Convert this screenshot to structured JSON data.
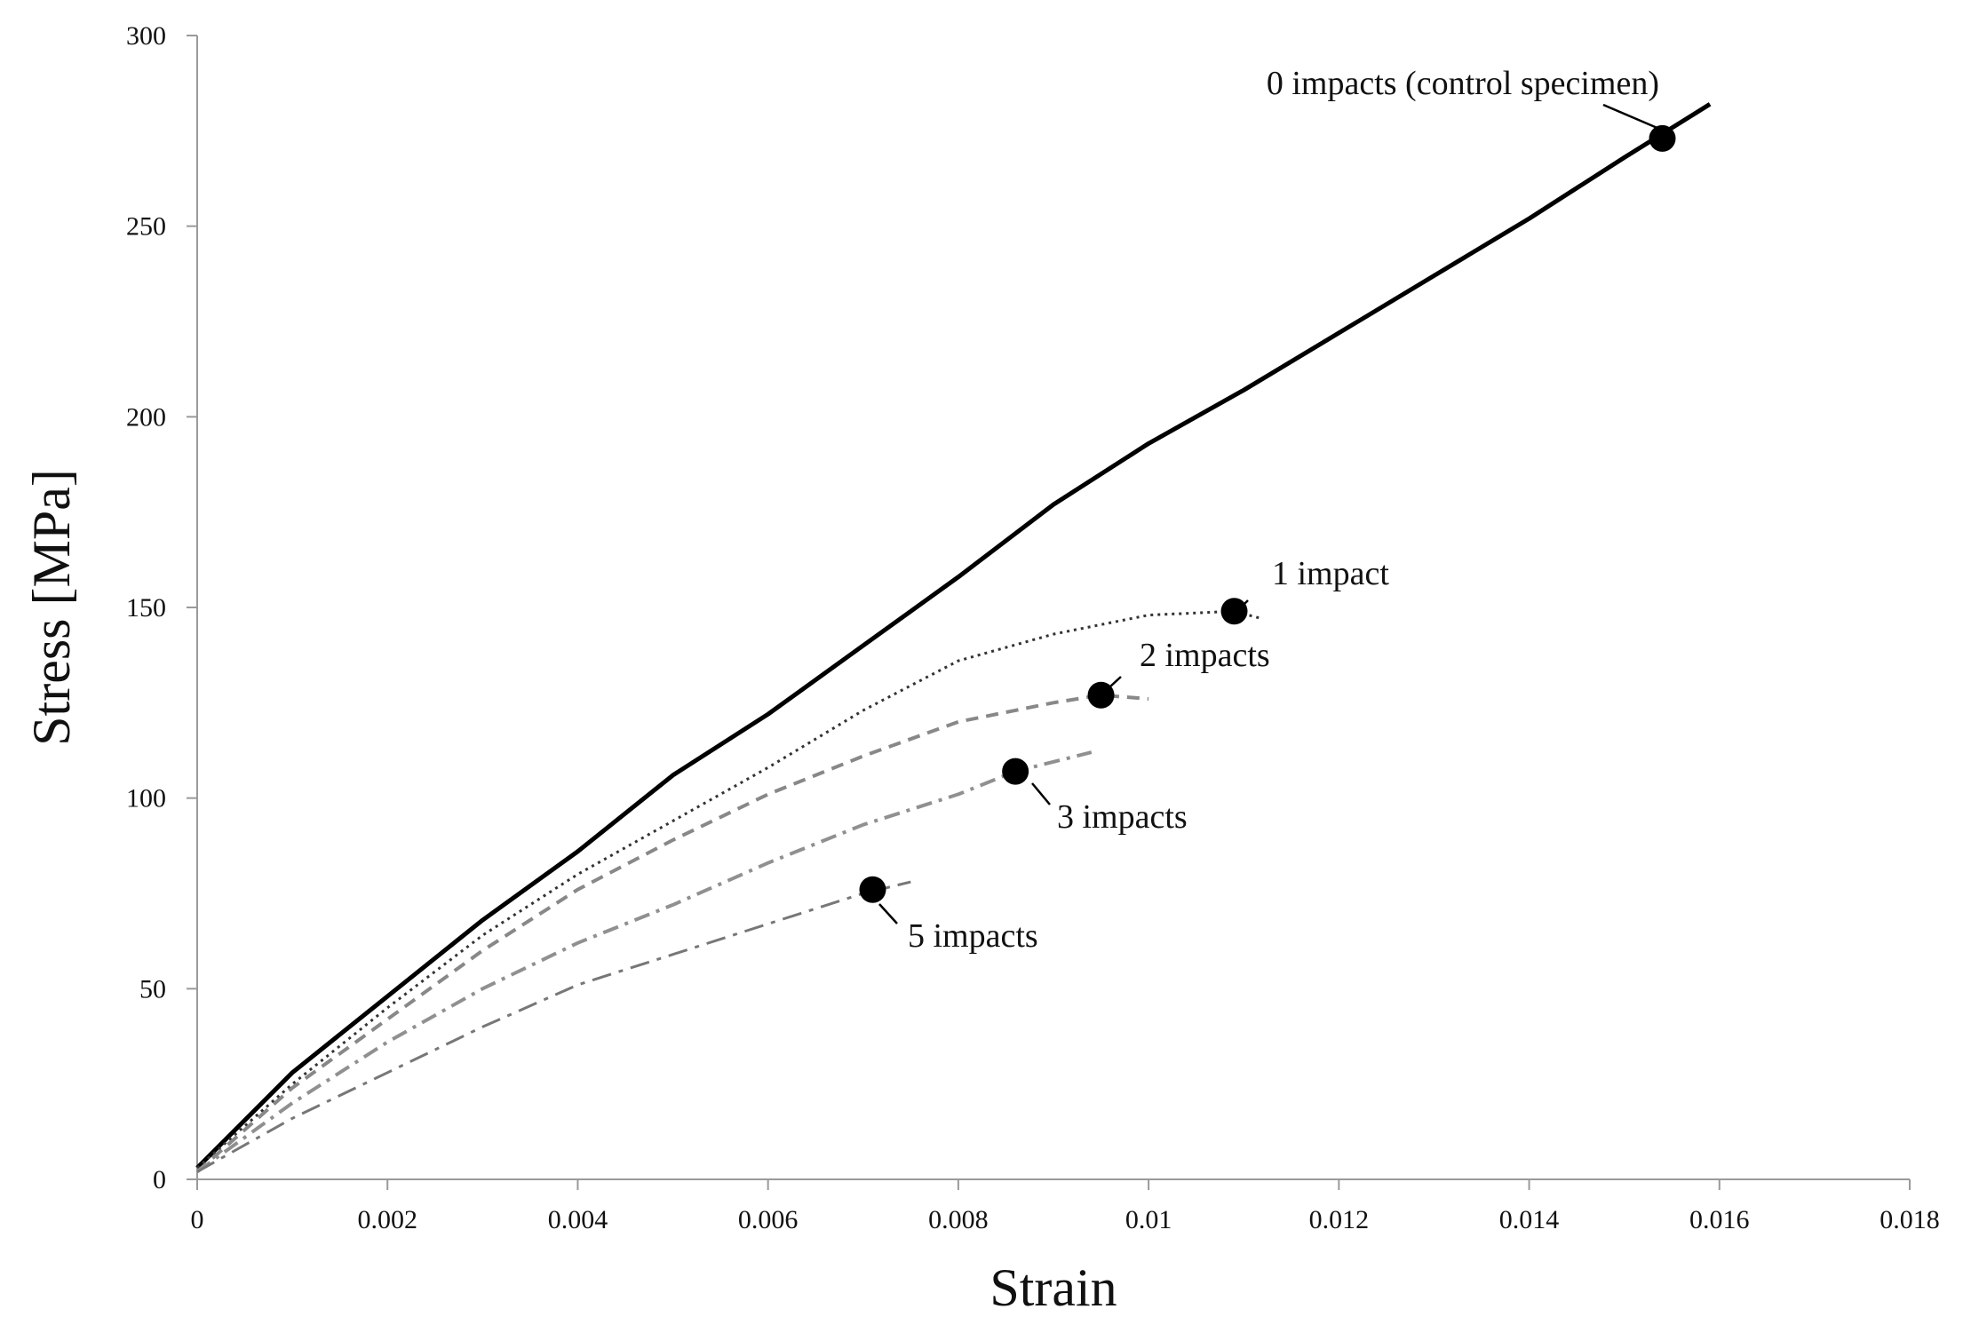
{
  "chart_data": {
    "type": "line",
    "xlabel": "Strain",
    "ylabel": "Stress [MPa]",
    "xlim": [
      0,
      0.018
    ],
    "ylim": [
      0,
      300
    ],
    "x_ticks": [
      "0",
      "0.002",
      "0.004",
      "0.006",
      "0.008",
      "0.01",
      "0.012",
      "0.014",
      "0.016",
      "0.018"
    ],
    "y_ticks": [
      "0",
      "50",
      "100",
      "150",
      "200",
      "250",
      "300"
    ],
    "grid": false,
    "legend": "none",
    "series": [
      {
        "name": "0 impacts (control specimen)",
        "color": "#000000",
        "style": "solid",
        "points": [
          [
            0,
            3
          ],
          [
            0.001,
            28
          ],
          [
            0.002,
            48
          ],
          [
            0.003,
            68
          ],
          [
            0.004,
            86
          ],
          [
            0.005,
            106
          ],
          [
            0.006,
            122
          ],
          [
            0.007,
            140
          ],
          [
            0.008,
            158
          ],
          [
            0.009,
            177
          ],
          [
            0.01,
            193
          ],
          [
            0.011,
            207
          ],
          [
            0.012,
            222
          ],
          [
            0.013,
            237
          ],
          [
            0.014,
            252
          ],
          [
            0.015,
            268
          ],
          [
            0.0159,
            282
          ]
        ],
        "failure": [
          0.0154,
          273
        ]
      },
      {
        "name": "1 impact",
        "color": "#333333",
        "style": "dotted",
        "points": [
          [
            0,
            3
          ],
          [
            0.001,
            25
          ],
          [
            0.002,
            45
          ],
          [
            0.003,
            64
          ],
          [
            0.004,
            80
          ],
          [
            0.005,
            94
          ],
          [
            0.006,
            108
          ],
          [
            0.007,
            123
          ],
          [
            0.008,
            136
          ],
          [
            0.009,
            143
          ],
          [
            0.01,
            148
          ],
          [
            0.0109,
            149
          ],
          [
            0.0112,
            147
          ]
        ],
        "failure": [
          0.0109,
          149
        ]
      },
      {
        "name": "2 impacts",
        "color": "#888888",
        "style": "dashed",
        "points": [
          [
            0,
            2
          ],
          [
            0.001,
            24
          ],
          [
            0.002,
            42
          ],
          [
            0.003,
            60
          ],
          [
            0.004,
            76
          ],
          [
            0.005,
            89
          ],
          [
            0.006,
            101
          ],
          [
            0.007,
            111
          ],
          [
            0.008,
            120
          ],
          [
            0.009,
            125
          ],
          [
            0.0095,
            127
          ],
          [
            0.01,
            126
          ]
        ],
        "failure": [
          0.0095,
          127
        ]
      },
      {
        "name": "3 impacts",
        "color": "#909090",
        "style": "dashdot",
        "points": [
          [
            0,
            2
          ],
          [
            0.001,
            20
          ],
          [
            0.002,
            36
          ],
          [
            0.003,
            50
          ],
          [
            0.004,
            62
          ],
          [
            0.005,
            72
          ],
          [
            0.006,
            83
          ],
          [
            0.007,
            93
          ],
          [
            0.008,
            101
          ],
          [
            0.0086,
            107
          ],
          [
            0.0094,
            112
          ]
        ],
        "failure": [
          0.0086,
          107
        ]
      },
      {
        "name": "5 impacts",
        "color": "#777777",
        "style": "longdashdot",
        "points": [
          [
            0,
            2
          ],
          [
            0.001,
            16
          ],
          [
            0.002,
            28
          ],
          [
            0.003,
            40
          ],
          [
            0.004,
            51
          ],
          [
            0.005,
            59
          ],
          [
            0.006,
            67
          ],
          [
            0.007,
            75
          ],
          [
            0.0075,
            78
          ]
        ],
        "failure": [
          0.0071,
          76
        ]
      }
    ],
    "annotations": [
      {
        "label": "0 impacts (control specimen)",
        "series": 0
      },
      {
        "label": "1 impact",
        "series": 1
      },
      {
        "label": "2 impacts",
        "series": 2
      },
      {
        "label": "3 impacts",
        "series": 3
      },
      {
        "label": "5 impacts",
        "series": 4
      }
    ]
  }
}
